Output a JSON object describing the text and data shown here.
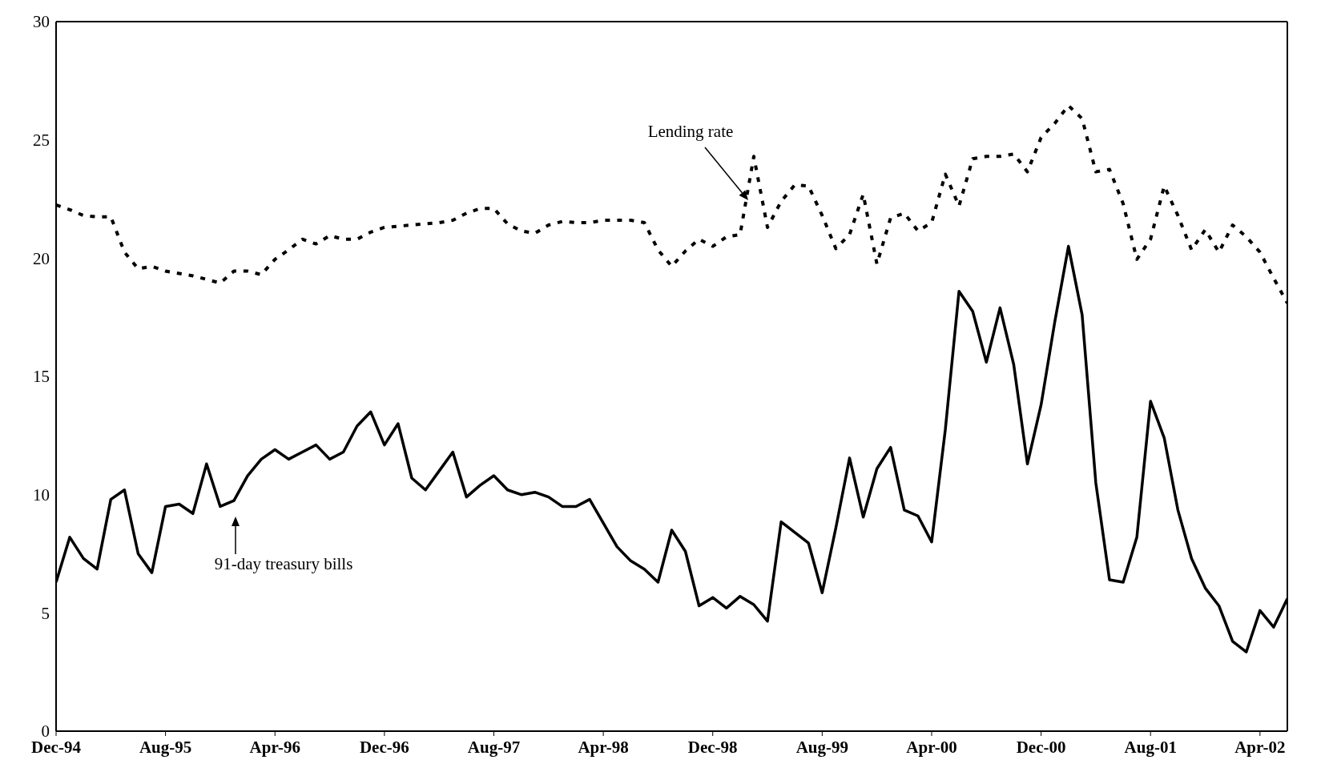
{
  "chart_data": {
    "type": "line",
    "x": [
      "1994-12",
      "1995-01",
      "1995-02",
      "1995-03",
      "1995-04",
      "1995-05",
      "1995-06",
      "1995-07",
      "1995-08",
      "1995-09",
      "1995-10",
      "1995-11",
      "1995-12",
      "1996-01",
      "1996-02",
      "1996-03",
      "1996-04",
      "1996-05",
      "1996-06",
      "1996-07",
      "1996-08",
      "1996-09",
      "1996-10",
      "1996-11",
      "1996-12",
      "1997-01",
      "1997-02",
      "1997-03",
      "1997-04",
      "1997-05",
      "1997-06",
      "1997-07",
      "1997-08",
      "1997-09",
      "1997-10",
      "1997-11",
      "1997-12",
      "1998-01",
      "1998-02",
      "1998-03",
      "1998-04",
      "1998-05",
      "1998-06",
      "1998-07",
      "1998-08",
      "1998-09",
      "1998-10",
      "1998-11",
      "1998-12",
      "1999-01",
      "1999-02",
      "1999-03",
      "1999-04",
      "1999-05",
      "1999-06",
      "1999-07",
      "1999-08",
      "1999-09",
      "1999-10",
      "1999-11",
      "1999-12",
      "2000-01",
      "2000-02",
      "2000-03",
      "2000-04",
      "2000-05",
      "2000-06",
      "2000-07",
      "2000-08",
      "2000-09",
      "2000-10",
      "2000-11",
      "2000-12",
      "2001-01",
      "2001-02",
      "2001-03",
      "2001-04",
      "2001-05",
      "2001-06",
      "2001-07",
      "2001-08",
      "2001-09",
      "2001-10",
      "2001-11",
      "2001-12",
      "2002-01",
      "2002-02",
      "2002-03",
      "2002-04",
      "2002-05",
      "2002-06"
    ],
    "xlim": [
      "1994-12",
      "2002-06"
    ],
    "xticks": [
      {
        "value": "1994-12",
        "label": "Dec-94"
      },
      {
        "value": "1995-08",
        "label": "Aug-95"
      },
      {
        "value": "1996-04",
        "label": "Apr-96"
      },
      {
        "value": "1996-12",
        "label": "Dec-96"
      },
      {
        "value": "1997-08",
        "label": "Aug-97"
      },
      {
        "value": "1998-04",
        "label": "Apr-98"
      },
      {
        "value": "1998-12",
        "label": "Dec-98"
      },
      {
        "value": "1999-08",
        "label": "Aug-99"
      },
      {
        "value": "2000-04",
        "label": "Apr-00"
      },
      {
        "value": "2000-12",
        "label": "Dec-00"
      },
      {
        "value": "2001-08",
        "label": "Aug-01"
      },
      {
        "value": "2002-04",
        "label": "Apr-02"
      }
    ],
    "ylim": [
      0,
      30
    ],
    "yticks": [
      0,
      5,
      10,
      15,
      20,
      25,
      30
    ],
    "series": [
      {
        "color": "#000000",
        "line_style": "dotted",
        "values": [
          22.25,
          22.05,
          21.8,
          21.75,
          21.75,
          20.25,
          19.55,
          19.65,
          19.45,
          19.35,
          19.25,
          19.1,
          18.95,
          19.45,
          19.45,
          19.3,
          19.95,
          20.35,
          20.8,
          20.6,
          20.95,
          20.8,
          20.8,
          21.1,
          21.3,
          21.35,
          21.4,
          21.45,
          21.5,
          21.6,
          21.9,
          22.1,
          22.1,
          21.45,
          21.15,
          21.05,
          21.4,
          21.55,
          21.5,
          21.5,
          21.6,
          21.6,
          21.6,
          21.5,
          20.35,
          19.65,
          20.3,
          20.8,
          20.5,
          20.9,
          21.0,
          24.3,
          21.3,
          22.4,
          23.1,
          23.05,
          21.8,
          20.4,
          21.0,
          22.7,
          19.75,
          21.7,
          21.9,
          21.15,
          21.5,
          23.55,
          22.2,
          24.2,
          24.3,
          24.3,
          24.4,
          23.65,
          25.1,
          25.7,
          26.45,
          25.9,
          23.65,
          23.75,
          22.3,
          19.95,
          20.8,
          23.05,
          21.8,
          20.35,
          21.2,
          20.25,
          21.4,
          20.9,
          20.25,
          19.15,
          18.1
        ]
      },
      {
        "color": "#000000",
        "line_style": "solid",
        "values": [
          6.3,
          8.2,
          7.3,
          6.85,
          9.8,
          10.2,
          7.5,
          6.7,
          9.5,
          9.6,
          9.2,
          11.3,
          9.5,
          9.75,
          10.8,
          11.5,
          11.9,
          11.5,
          11.8,
          12.1,
          11.5,
          11.8,
          12.9,
          13.5,
          12.1,
          13.0,
          10.7,
          10.2,
          11.0,
          11.8,
          9.9,
          10.4,
          10.8,
          10.2,
          10.0,
          10.1,
          9.9,
          9.5,
          9.5,
          9.8,
          8.8,
          7.8,
          7.2,
          6.85,
          6.3,
          8.5,
          7.6,
          5.3,
          5.65,
          5.2,
          5.7,
          5.35,
          4.65,
          8.85,
          8.4,
          7.95,
          5.85,
          8.6,
          11.55,
          9.05,
          11.1,
          12.0,
          9.35,
          9.1,
          8.0,
          12.75,
          18.6,
          17.75,
          15.6,
          17.9,
          15.5,
          11.3,
          13.8,
          17.3,
          20.5,
          17.6,
          10.5,
          6.4,
          6.3,
          8.2,
          13.95,
          12.4,
          9.35,
          7.3,
          6.05,
          5.3,
          3.8,
          3.35,
          5.1,
          4.4,
          5.6
        ]
      }
    ],
    "annotations": [
      "Lending rate",
      "91-day treasury bills"
    ]
  }
}
